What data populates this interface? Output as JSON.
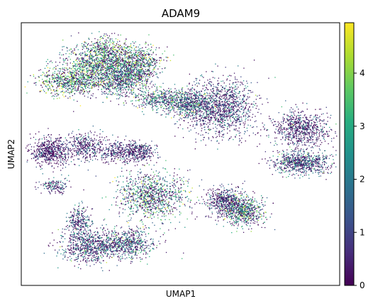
{
  "chart_data": {
    "type": "scatter",
    "title": "ADAM9",
    "xlabel": "UMAP1",
    "ylabel": "UMAP2",
    "xlim": [
      0,
      100
    ],
    "ylim": [
      0,
      100
    ],
    "colorbar": {
      "colormap": "viridis",
      "range": [
        0,
        4.95
      ],
      "ticks": [
        0,
        1,
        2,
        3,
        4
      ],
      "tick_labels": [
        "0",
        "1",
        "2",
        "3",
        "4"
      ]
    },
    "grid": false,
    "legend": "none",
    "colors": {
      "low": "#440154",
      "mid": "#21918c",
      "high": "#fde725",
      "frame": "#000000"
    },
    "clusters": [
      {
        "cx": 15,
        "cy": 78,
        "sx": 6,
        "sy": 3,
        "mean": 3.2,
        "n": 700
      },
      {
        "cx": 22,
        "cy": 84,
        "sx": 5,
        "sy": 5,
        "mean": 2.9,
        "n": 700
      },
      {
        "cx": 27,
        "cy": 88,
        "sx": 4,
        "sy": 4,
        "mean": 3.1,
        "n": 500
      },
      {
        "cx": 37,
        "cy": 86,
        "sx": 4,
        "sy": 3,
        "mean": 3.3,
        "n": 450
      },
      {
        "cx": 35,
        "cy": 80,
        "sx": 4,
        "sy": 4,
        "mean": 2.7,
        "n": 500
      },
      {
        "cx": 30,
        "cy": 79,
        "sx": 4,
        "sy": 4,
        "mean": 2.4,
        "n": 500
      },
      {
        "cx": 44,
        "cy": 71,
        "sx": 5,
        "sy": 2,
        "mean": 2.4,
        "n": 400
      },
      {
        "cx": 62,
        "cy": 68,
        "sx": 6,
        "sy": 6,
        "mean": 1.3,
        "n": 1300
      },
      {
        "cx": 52,
        "cy": 69,
        "sx": 4,
        "sy": 3,
        "mean": 2.0,
        "n": 500
      },
      {
        "cx": 9,
        "cy": 51,
        "sx": 3.5,
        "sy": 3,
        "mean": 0.6,
        "n": 600
      },
      {
        "cx": 20,
        "cy": 53,
        "sx": 3,
        "sy": 3,
        "mean": 1.0,
        "n": 350
      },
      {
        "cx": 30,
        "cy": 51,
        "sx": 4,
        "sy": 2.5,
        "mean": 0.7,
        "n": 300
      },
      {
        "cx": 37,
        "cy": 51,
        "sx": 3,
        "sy": 2,
        "mean": 0.9,
        "n": 300
      },
      {
        "cx": 10,
        "cy": 38,
        "sx": 2.5,
        "sy": 1.5,
        "mean": 1.3,
        "n": 150
      },
      {
        "cx": 41,
        "cy": 34,
        "sx": 6,
        "sy": 5,
        "mean": 2.6,
        "n": 1000
      },
      {
        "cx": 21,
        "cy": 15,
        "sx": 5,
        "sy": 3.5,
        "mean": 1.6,
        "n": 700
      },
      {
        "cx": 33,
        "cy": 16,
        "sx": 5,
        "sy": 3,
        "mean": 1.8,
        "n": 650
      },
      {
        "cx": 18,
        "cy": 25,
        "sx": 2,
        "sy": 3,
        "mean": 1.7,
        "n": 250
      },
      {
        "cx": 64,
        "cy": 32,
        "sx": 3.5,
        "sy": 3,
        "mean": 1.1,
        "n": 550
      },
      {
        "cx": 70,
        "cy": 28,
        "sx": 3.5,
        "sy": 3,
        "mean": 2.8,
        "n": 600
      },
      {
        "cx": 88,
        "cy": 60,
        "sx": 5,
        "sy": 3.5,
        "mean": 0.9,
        "n": 750
      },
      {
        "cx": 88,
        "cy": 47,
        "sx": 5,
        "sy": 2.5,
        "mean": 1.7,
        "n": 750
      }
    ]
  }
}
